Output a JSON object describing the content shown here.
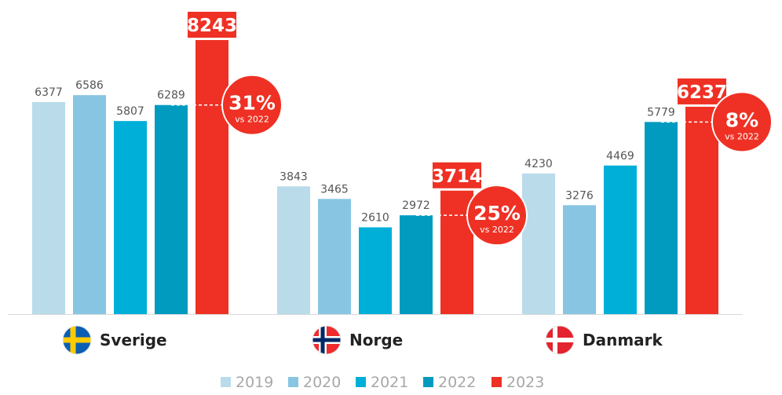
{
  "chart_data": {
    "type": "bar",
    "title": "",
    "xlabel": "",
    "ylabel": "",
    "ylim": [
      0,
      8243
    ],
    "grid": false,
    "legend_position": "bottom",
    "categories": [
      "Sverige",
      "Norge",
      "Danmark"
    ],
    "series": [
      {
        "name": "2019",
        "color": "#b9dbea",
        "values": [
          6377,
          3843,
          4230
        ]
      },
      {
        "name": "2020",
        "color": "#88c5e2",
        "values": [
          6586,
          3465,
          3276
        ]
      },
      {
        "name": "2021",
        "color": "#00afd8",
        "values": [
          5807,
          2610,
          4469
        ]
      },
      {
        "name": "2022",
        "color": "#009bbf",
        "values": [
          6289,
          2972,
          5779
        ]
      },
      {
        "name": "2023",
        "color": "#ee3124",
        "values": [
          8243,
          3714,
          6237
        ]
      }
    ],
    "highlight_series": "2023",
    "annotations": [
      {
        "category": "Sverige",
        "change": "31%",
        "note": "vs 2022"
      },
      {
        "category": "Norge",
        "change": "25%",
        "note": "vs 2022"
      },
      {
        "category": "Danmark",
        "change": "8%",
        "note": "vs 2022"
      }
    ],
    "flags": [
      {
        "category": "Sverige",
        "icon": "sweden-flag-icon"
      },
      {
        "category": "Norge",
        "icon": "norway-flag-icon"
      },
      {
        "category": "Danmark",
        "icon": "denmark-flag-icon"
      }
    ]
  }
}
